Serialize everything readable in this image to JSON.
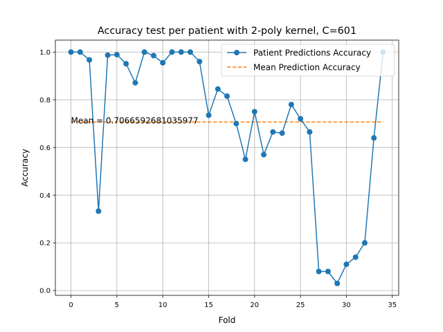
{
  "chart_data": {
    "type": "line",
    "title": "Accuracy test per patient with 2-poly kernel, C=601",
    "xlabel": "Fold",
    "ylabel": "Accuracy",
    "xlim": [
      -1.7,
      35.7
    ],
    "ylim": [
      -0.02,
      1.05
    ],
    "xticks": [
      0,
      5,
      10,
      15,
      20,
      25,
      30,
      35
    ],
    "yticks": [
      0.0,
      0.2,
      0.4,
      0.6,
      0.8,
      1.0
    ],
    "grid": true,
    "legend_position": "top-right",
    "series": [
      {
        "name": "Patient Predictions Accuracy",
        "color": "#1f77b4",
        "style": "solid-with-markers",
        "x": [
          0,
          1,
          2,
          3,
          4,
          5,
          6,
          7,
          8,
          9,
          10,
          11,
          12,
          13,
          14,
          15,
          16,
          17,
          18,
          19,
          20,
          21,
          22,
          23,
          24,
          25,
          26,
          27,
          28,
          29,
          30,
          31,
          32,
          33,
          34
        ],
        "y": [
          1.0,
          1.0,
          0.967,
          0.333,
          0.987,
          0.989,
          0.951,
          0.871,
          1.0,
          0.985,
          0.955,
          1.0,
          1.0,
          1.0,
          0.96,
          0.735,
          0.845,
          0.815,
          0.7,
          0.55,
          0.75,
          0.57,
          0.665,
          0.66,
          0.78,
          0.72,
          0.665,
          0.08,
          0.08,
          0.03,
          0.11,
          0.14,
          0.2,
          0.64,
          1.0
        ]
      },
      {
        "name": "Mean Prediction Accuracy",
        "color": "#ff7f0e",
        "style": "dashed",
        "x": [
          0,
          34
        ],
        "y": [
          0.7066592681035977,
          0.7066592681035977
        ]
      }
    ],
    "annotations": [
      {
        "text": "Mean = 0.7066592681035977",
        "x": 0,
        "y": 0.7066592681035977
      }
    ]
  }
}
